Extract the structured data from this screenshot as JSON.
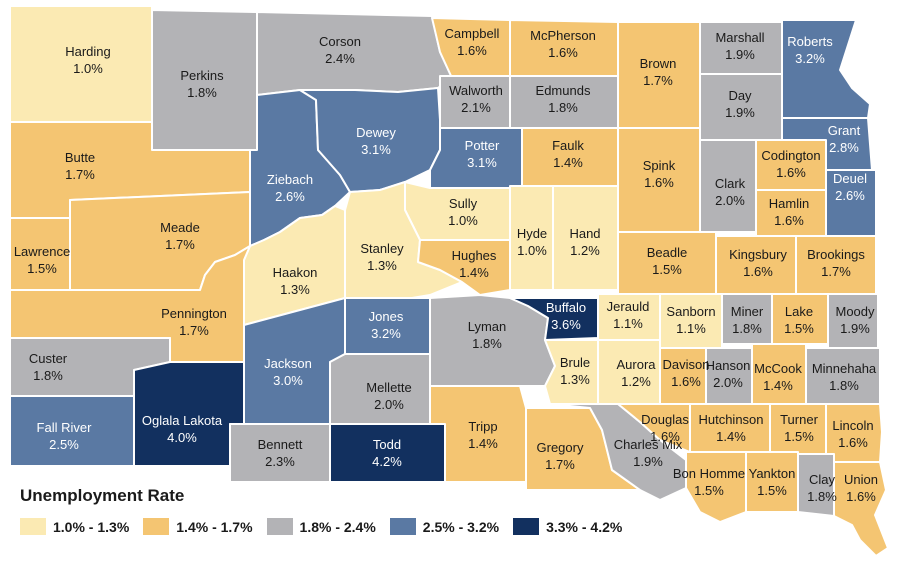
{
  "legend": {
    "title": "Unemployment Rate",
    "bins": [
      {
        "label": "1.0% - 1.3%",
        "color": "#fbeab3"
      },
      {
        "label": "1.4% - 1.7%",
        "color": "#f4c572"
      },
      {
        "label": "1.8% - 2.4%",
        "color": "#b3b3b6"
      },
      {
        "label": "2.5% - 3.2%",
        "color": "#5a79a3"
      },
      {
        "label": "3.3% - 4.2%",
        "color": "#12305f"
      }
    ]
  },
  "counties": [
    {
      "name": "Harding",
      "rate": "1.0%",
      "bin": 0
    },
    {
      "name": "Perkins",
      "rate": "1.8%",
      "bin": 2
    },
    {
      "name": "Corson",
      "rate": "2.4%",
      "bin": 2
    },
    {
      "name": "Campbell",
      "rate": "1.6%",
      "bin": 1
    },
    {
      "name": "McPherson",
      "rate": "1.6%",
      "bin": 1
    },
    {
      "name": "Brown",
      "rate": "1.7%",
      "bin": 1
    },
    {
      "name": "Marshall",
      "rate": "1.9%",
      "bin": 2
    },
    {
      "name": "Roberts",
      "rate": "3.2%",
      "bin": 3
    },
    {
      "name": "Butte",
      "rate": "1.7%",
      "bin": 1
    },
    {
      "name": "Ziebach",
      "rate": "2.6%",
      "bin": 3
    },
    {
      "name": "Dewey",
      "rate": "3.1%",
      "bin": 3
    },
    {
      "name": "Walworth",
      "rate": "2.1%",
      "bin": 2
    },
    {
      "name": "Edmunds",
      "rate": "1.8%",
      "bin": 2
    },
    {
      "name": "Day",
      "rate": "1.9%",
      "bin": 2
    },
    {
      "name": "Grant",
      "rate": "2.8%",
      "bin": 3
    },
    {
      "name": "Potter",
      "rate": "3.1%",
      "bin": 3
    },
    {
      "name": "Faulk",
      "rate": "1.4%",
      "bin": 1
    },
    {
      "name": "Spink",
      "rate": "1.6%",
      "bin": 1
    },
    {
      "name": "Clark",
      "rate": "2.0%",
      "bin": 2
    },
    {
      "name": "Codington",
      "rate": "1.6%",
      "bin": 1
    },
    {
      "name": "Deuel",
      "rate": "2.6%",
      "bin": 3
    },
    {
      "name": "Meade",
      "rate": "1.7%",
      "bin": 1
    },
    {
      "name": "Lawrence",
      "rate": "1.5%",
      "bin": 1
    },
    {
      "name": "Sully",
      "rate": "1.0%",
      "bin": 0
    },
    {
      "name": "Hyde",
      "rate": "1.0%",
      "bin": 0
    },
    {
      "name": "Hand",
      "rate": "1.2%",
      "bin": 0
    },
    {
      "name": "Hamlin",
      "rate": "1.6%",
      "bin": 1
    },
    {
      "name": "Haakon",
      "rate": "1.3%",
      "bin": 0
    },
    {
      "name": "Stanley",
      "rate": "1.3%",
      "bin": 0
    },
    {
      "name": "Hughes",
      "rate": "1.4%",
      "bin": 1
    },
    {
      "name": "Beadle",
      "rate": "1.5%",
      "bin": 1
    },
    {
      "name": "Kingsbury",
      "rate": "1.6%",
      "bin": 1
    },
    {
      "name": "Brookings",
      "rate": "1.7%",
      "bin": 1
    },
    {
      "name": "Pennington",
      "rate": "1.7%",
      "bin": 1
    },
    {
      "name": "Jones",
      "rate": "3.2%",
      "bin": 3
    },
    {
      "name": "Lyman",
      "rate": "1.8%",
      "bin": 2
    },
    {
      "name": "Buffalo",
      "rate": "3.6%",
      "bin": 4
    },
    {
      "name": "Jerauld",
      "rate": "1.1%",
      "bin": 0
    },
    {
      "name": "Sanborn",
      "rate": "1.1%",
      "bin": 0
    },
    {
      "name": "Miner",
      "rate": "1.8%",
      "bin": 2
    },
    {
      "name": "Lake",
      "rate": "1.5%",
      "bin": 1
    },
    {
      "name": "Moody",
      "rate": "1.9%",
      "bin": 2
    },
    {
      "name": "Custer",
      "rate": "1.8%",
      "bin": 2
    },
    {
      "name": "Jackson",
      "rate": "3.0%",
      "bin": 3
    },
    {
      "name": "Mellette",
      "rate": "2.0%",
      "bin": 2
    },
    {
      "name": "Brule",
      "rate": "1.3%",
      "bin": 0
    },
    {
      "name": "Aurora",
      "rate": "1.2%",
      "bin": 0
    },
    {
      "name": "Davison",
      "rate": "1.6%",
      "bin": 1
    },
    {
      "name": "Hanson",
      "rate": "2.0%",
      "bin": 2
    },
    {
      "name": "McCook",
      "rate": "1.4%",
      "bin": 1
    },
    {
      "name": "Minnehaha",
      "rate": "1.8%",
      "bin": 2
    },
    {
      "name": "Fall River",
      "rate": "2.5%",
      "bin": 3
    },
    {
      "name": "Oglala Lakota",
      "rate": "4.0%",
      "bin": 4
    },
    {
      "name": "Bennett",
      "rate": "2.3%",
      "bin": 2
    },
    {
      "name": "Todd",
      "rate": "4.2%",
      "bin": 4
    },
    {
      "name": "Tripp",
      "rate": "1.4%",
      "bin": 1
    },
    {
      "name": "Gregory",
      "rate": "1.7%",
      "bin": 1
    },
    {
      "name": "Charles Mix",
      "rate": "1.9%",
      "bin": 2
    },
    {
      "name": "Douglas",
      "rate": "1.6%",
      "bin": 1
    },
    {
      "name": "Hutchinson",
      "rate": "1.4%",
      "bin": 1
    },
    {
      "name": "Turner",
      "rate": "1.5%",
      "bin": 1
    },
    {
      "name": "Lincoln",
      "rate": "1.6%",
      "bin": 1
    },
    {
      "name": "Bon Homme",
      "rate": "1.5%",
      "bin": 1
    },
    {
      "name": "Yankton",
      "rate": "1.5%",
      "bin": 1
    },
    {
      "name": "Clay",
      "rate": "1.8%",
      "bin": 2
    },
    {
      "name": "Union",
      "rate": "1.6%",
      "bin": 1
    }
  ]
}
